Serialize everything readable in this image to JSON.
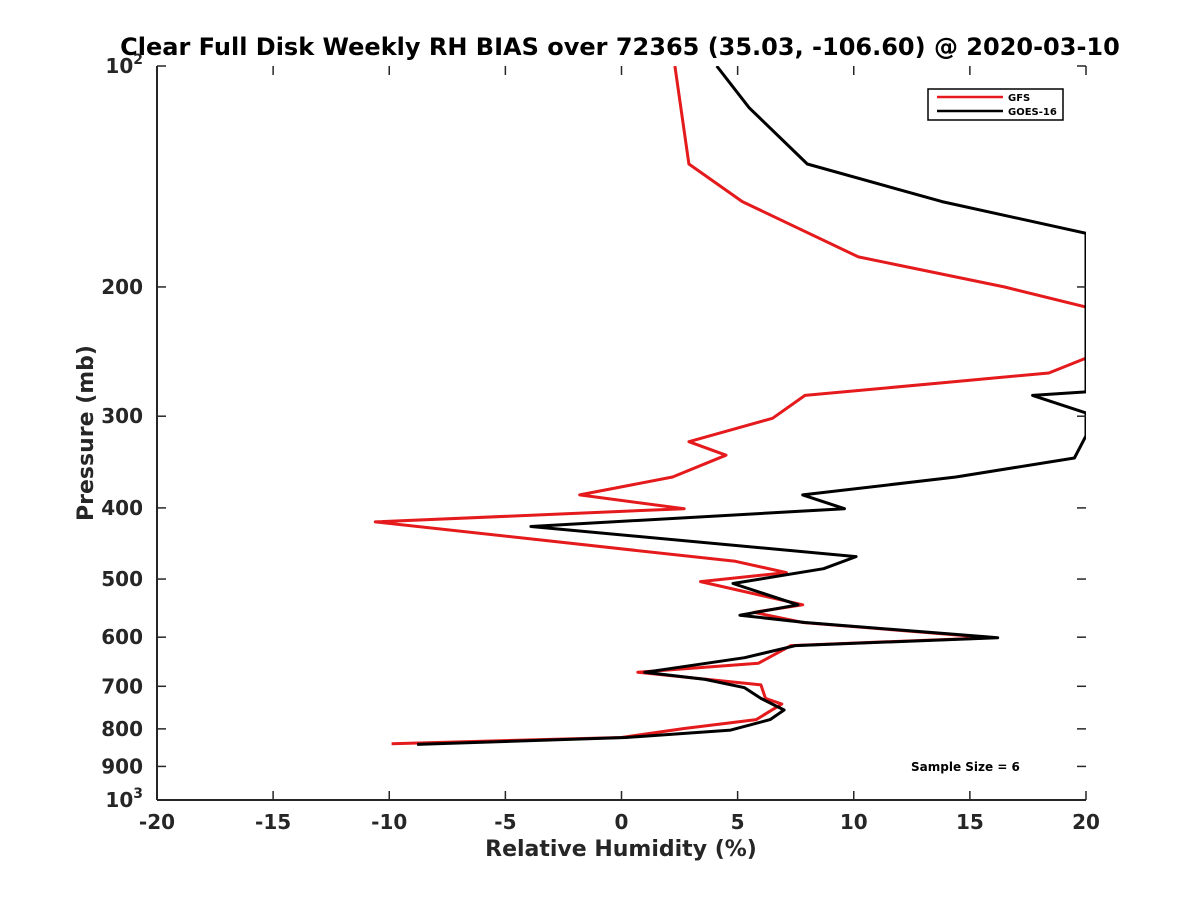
{
  "chart_data": {
    "type": "line",
    "title": "Clear Full Disk Weekly RH BIAS over 72365 (35.03, -106.60) @ 2020-03-10",
    "xlabel": "Relative Humidity (%)",
    "ylabel": "Pressure (mb)",
    "xlim": [
      -20,
      20
    ],
    "ylim": [
      100,
      1000
    ],
    "y_scale": "log",
    "y_reversed": true,
    "xticks": [
      -20,
      -15,
      -10,
      -5,
      0,
      5,
      10,
      15,
      20
    ],
    "xtick_labels": [
      "-20",
      "-15",
      "-10",
      "-5",
      "0",
      "5",
      "10",
      "15",
      "20"
    ],
    "yticks": [
      {
        "value": 100,
        "base": "10",
        "exp": "2"
      },
      {
        "value": 200,
        "label": "200"
      },
      {
        "value": 300,
        "label": "300"
      },
      {
        "value": 400,
        "label": "400"
      },
      {
        "value": 500,
        "label": "500"
      },
      {
        "value": 600,
        "label": "600"
      },
      {
        "value": 700,
        "label": "700"
      },
      {
        "value": 800,
        "label": "800"
      },
      {
        "value": 900,
        "label": "900"
      },
      {
        "value": 1000,
        "base": "10",
        "exp": "3"
      }
    ],
    "legend": {
      "placement": "top-right"
    },
    "annotation": "Sample Size = 6",
    "grid": false,
    "series": [
      {
        "name": "GFS",
        "color": "#e41a1c",
        "points": [
          {
            "x": 2.3,
            "y": 100
          },
          {
            "x": 2.9,
            "y": 136
          },
          {
            "x": 5.2,
            "y": 153
          },
          {
            "x": 10.2,
            "y": 182
          },
          {
            "x": 16.5,
            "y": 200
          },
          {
            "x": 20.0,
            "y": 213
          },
          {
            "x": 20.0,
            "y": 250
          },
          {
            "x": 18.4,
            "y": 262
          },
          {
            "x": 7.9,
            "y": 281
          },
          {
            "x": 6.5,
            "y": 302
          },
          {
            "x": 2.9,
            "y": 325
          },
          {
            "x": 4.5,
            "y": 339
          },
          {
            "x": 2.2,
            "y": 363
          },
          {
            "x": -1.8,
            "y": 384
          },
          {
            "x": 2.7,
            "y": 401
          },
          {
            "x": -10.6,
            "y": 418
          },
          {
            "x": 4.9,
            "y": 473
          },
          {
            "x": 7.1,
            "y": 490
          },
          {
            "x": 3.4,
            "y": 504
          },
          {
            "x": 7.8,
            "y": 542
          },
          {
            "x": 5.7,
            "y": 555
          },
          {
            "x": 7.8,
            "y": 573
          },
          {
            "x": 15.9,
            "y": 601
          },
          {
            "x": 7.3,
            "y": 616
          },
          {
            "x": 5.9,
            "y": 651
          },
          {
            "x": 0.7,
            "y": 670
          },
          {
            "x": 6.0,
            "y": 697
          },
          {
            "x": 6.2,
            "y": 727
          },
          {
            "x": 6.9,
            "y": 740
          },
          {
            "x": 5.8,
            "y": 777
          },
          {
            "x": 2.7,
            "y": 799
          },
          {
            "x": 0.0,
            "y": 822
          },
          {
            "x": -9.9,
            "y": 838
          }
        ]
      },
      {
        "name": "GOES-16",
        "color": "#000000",
        "points": [
          {
            "x": 4.1,
            "y": 100
          },
          {
            "x": 5.5,
            "y": 114
          },
          {
            "x": 8.0,
            "y": 136
          },
          {
            "x": 13.8,
            "y": 153
          },
          {
            "x": 20.0,
            "y": 169
          },
          {
            "x": 20.0,
            "y": 278
          },
          {
            "x": 17.7,
            "y": 281
          },
          {
            "x": 20.0,
            "y": 297
          },
          {
            "x": 20.0,
            "y": 319
          },
          {
            "x": 19.5,
            "y": 342
          },
          {
            "x": 14.4,
            "y": 363
          },
          {
            "x": 7.8,
            "y": 384
          },
          {
            "x": 9.6,
            "y": 401
          },
          {
            "x": -3.9,
            "y": 424
          },
          {
            "x": 10.1,
            "y": 466
          },
          {
            "x": 8.7,
            "y": 484
          },
          {
            "x": 4.8,
            "y": 507
          },
          {
            "x": 7.6,
            "y": 542
          },
          {
            "x": 5.1,
            "y": 560
          },
          {
            "x": 7.9,
            "y": 573
          },
          {
            "x": 16.2,
            "y": 601
          },
          {
            "x": 7.5,
            "y": 616
          },
          {
            "x": 5.3,
            "y": 640
          },
          {
            "x": 1.0,
            "y": 670
          },
          {
            "x": 3.6,
            "y": 685
          },
          {
            "x": 5.3,
            "y": 703
          },
          {
            "x": 6.0,
            "y": 727
          },
          {
            "x": 7.0,
            "y": 754
          },
          {
            "x": 6.4,
            "y": 777
          },
          {
            "x": 4.7,
            "y": 803
          },
          {
            "x": 0.2,
            "y": 822
          },
          {
            "x": -8.8,
            "y": 840
          }
        ]
      }
    ]
  }
}
